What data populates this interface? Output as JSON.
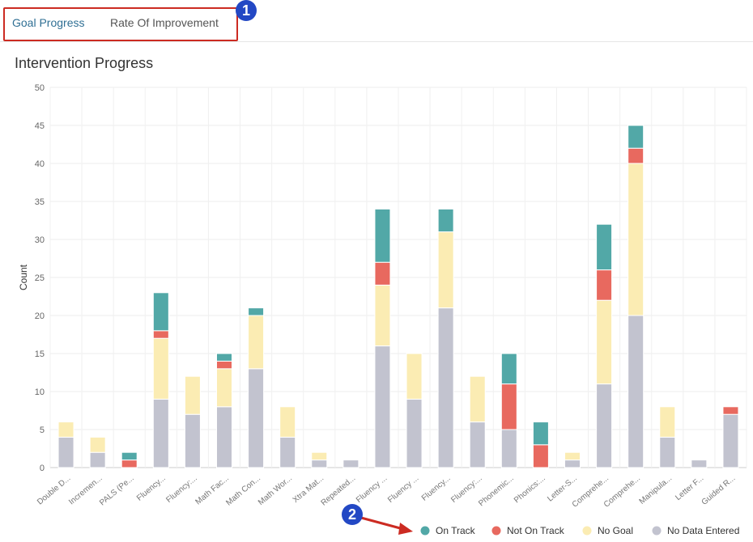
{
  "tabs": [
    {
      "label": "Goal Progress",
      "active": true
    },
    {
      "label": "Rate Of Improvement",
      "active": false
    }
  ],
  "annotations": {
    "badge_1": "1",
    "badge_2": "2"
  },
  "page_title": "Intervention Progress",
  "chart_data": {
    "type": "bar",
    "stacked": true,
    "title": "",
    "xlabel": "",
    "ylabel": "Count",
    "ylim": [
      0,
      50
    ],
    "yticks": [
      0,
      5,
      10,
      15,
      20,
      25,
      30,
      35,
      40,
      45,
      50
    ],
    "grid": true,
    "legend_position": "bottom-right",
    "categories": [
      "Double D...",
      "Incremen...",
      "PALS (Pe...",
      "Fluency...",
      "Fluency:...",
      "Math Fac...",
      "Math Con...",
      "Math Wor...",
      "Xtra Mat...",
      "Repeated...",
      "Fluency ...",
      "Fluency ...",
      "Fluency...",
      "Fluency:...",
      "Phonemic...",
      "Phonics:...",
      "Letter-S...",
      "Comprehe...",
      "Comprehe...",
      "Manipula...",
      "Letter F...",
      "Guided R..."
    ],
    "series": [
      {
        "name": "No Data Entered",
        "color": "#c2c3cf",
        "values": [
          4,
          2,
          0,
          9,
          7,
          8,
          13,
          4,
          1,
          1,
          16,
          9,
          21,
          6,
          5,
          0,
          1,
          11,
          20,
          4,
          1,
          7
        ]
      },
      {
        "name": "No Goal",
        "color": "#fbecb3",
        "values": [
          2,
          2,
          0,
          8,
          5,
          5,
          7,
          4,
          1,
          0,
          8,
          6,
          10,
          6,
          0,
          0,
          1,
          11,
          20,
          4,
          0,
          0
        ]
      },
      {
        "name": "Not On Track",
        "color": "#e8695f",
        "values": [
          0,
          0,
          1,
          1,
          0,
          1,
          0,
          0,
          0,
          0,
          3,
          0,
          0,
          0,
          6,
          3,
          0,
          4,
          2,
          0,
          0,
          1
        ]
      },
      {
        "name": "On Track",
        "color": "#52a8a7",
        "values": [
          0,
          0,
          1,
          5,
          0,
          1,
          1,
          0,
          0,
          0,
          7,
          0,
          3,
          0,
          4,
          3,
          0,
          6,
          3,
          0,
          0,
          0
        ]
      }
    ],
    "legend_order": [
      "On Track",
      "Not On Track",
      "No Goal",
      "No Data Entered"
    ]
  },
  "colors": {
    "accent": "#2f6f94",
    "highlight": "#cc2b22",
    "badge": "#2348c4"
  }
}
